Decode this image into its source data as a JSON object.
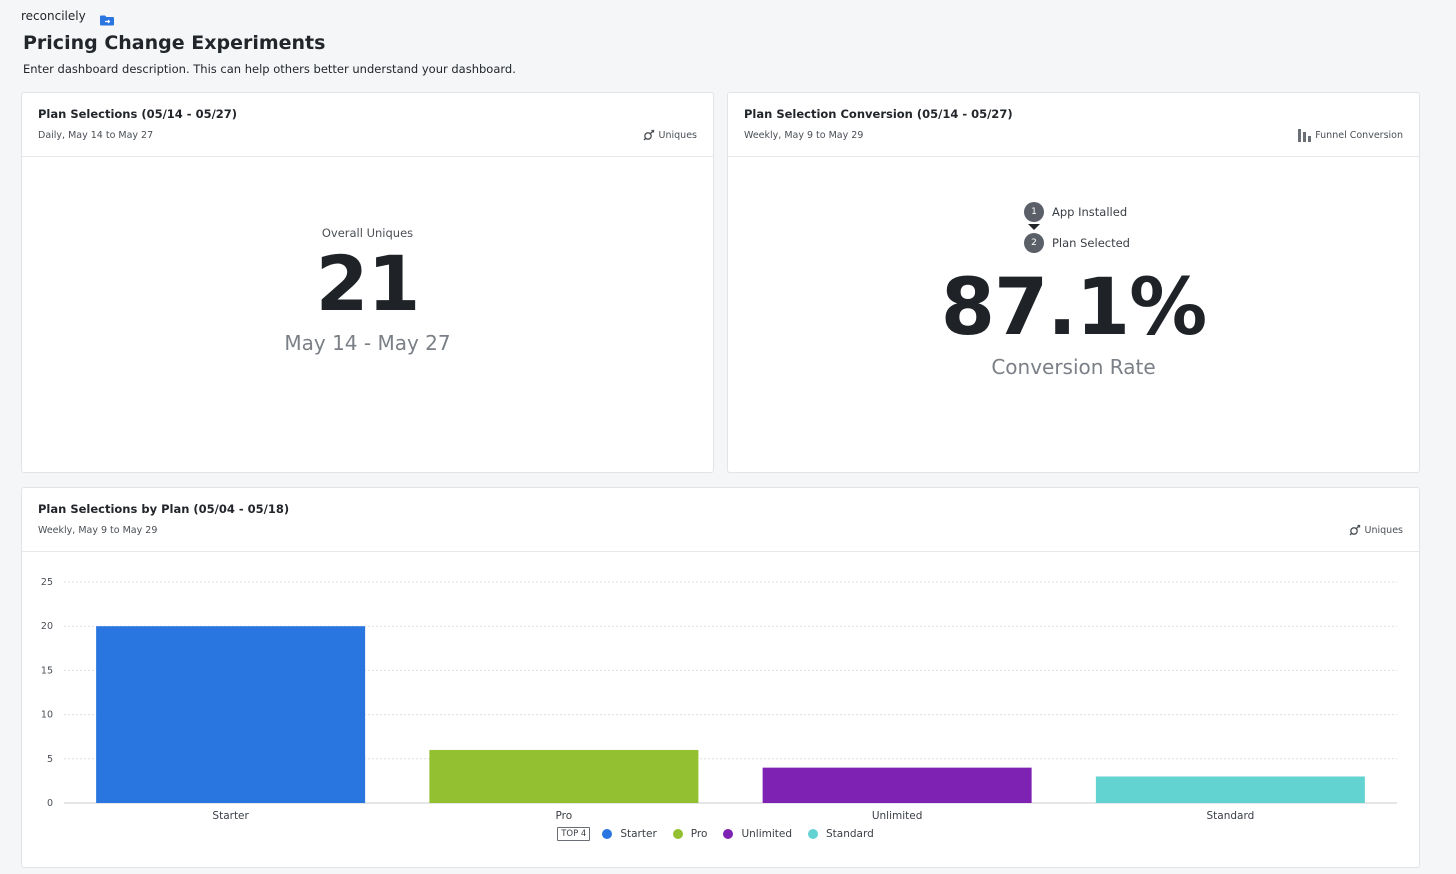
{
  "workspace": "reconcilely",
  "dashboard": {
    "title": "Pricing Change Experiments",
    "description": "Enter dashboard description. This can help others better understand your dashboard."
  },
  "card1": {
    "title": "Plan Selections (05/14 - 05/27)",
    "subtitle": "Daily, May 14 to May 27",
    "metric": "Uniques",
    "label": "Overall Uniques",
    "value": "21",
    "range": "May 14 - May 27"
  },
  "card2": {
    "title": "Plan Selection Conversion (05/14 - 05/27)",
    "subtitle": "Weekly, May 9 to May 29",
    "metric": "Funnel Conversion",
    "steps": [
      {
        "num": "1",
        "label": "App Installed"
      },
      {
        "num": "2",
        "label": "Plan Selected"
      }
    ],
    "value": "87.1%",
    "label": "Conversion Rate"
  },
  "card3": {
    "title": "Plan Selections by Plan (05/04 - 05/18)",
    "subtitle": "Weekly, May 9 to May 29",
    "metric": "Uniques",
    "legend_top": "TOP 4"
  },
  "colors": {
    "Starter": "#2a76e0",
    "Pro": "#93c030",
    "Unlimited": "#7e22b4",
    "Standard": "#63d3d2"
  },
  "chart_data": {
    "type": "bar",
    "categories": [
      "Starter",
      "Pro",
      "Unlimited",
      "Standard"
    ],
    "values": [
      20,
      6,
      4,
      3
    ],
    "yticks": [
      0,
      5,
      10,
      15,
      20,
      25
    ],
    "ylim": [
      0,
      25
    ],
    "grid": true,
    "legend": "bottom-center"
  }
}
